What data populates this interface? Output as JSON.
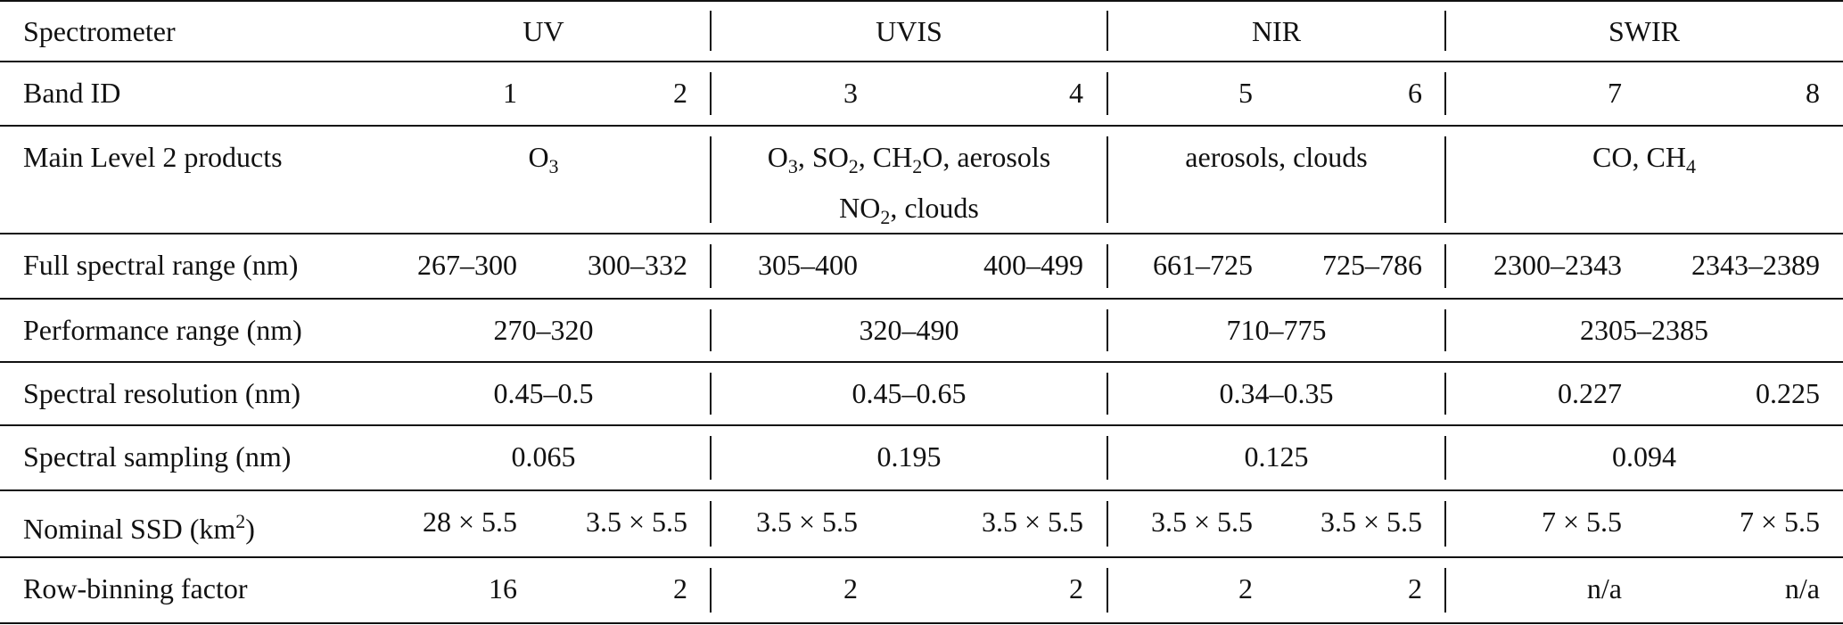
{
  "table": {
    "rows": [
      {
        "label": [
          [
            "Spectrometer"
          ]
        ],
        "groups": [
          {
            "span": [
              [
                "UV"
              ]
            ]
          },
          {
            "span": [
              [
                "UVIS"
              ]
            ]
          },
          {
            "span": [
              [
                "NIR"
              ]
            ]
          },
          {
            "span": [
              [
                "SWIR"
              ]
            ]
          }
        ]
      },
      {
        "label": [
          [
            "Band ID"
          ]
        ],
        "groups": [
          {
            "bands": [
              [
                [
                  "1"
                ]
              ],
              [
                [
                  "2"
                ]
              ]
            ]
          },
          {
            "bands": [
              [
                [
                  "3"
                ]
              ],
              [
                [
                  "4"
                ]
              ]
            ]
          },
          {
            "bands": [
              [
                [
                  "5"
                ]
              ],
              [
                [
                  "6"
                ]
              ]
            ]
          },
          {
            "bands": [
              [
                [
                  "7"
                ]
              ],
              [
                [
                  "8"
                ]
              ]
            ]
          }
        ]
      },
      {
        "label": [
          [
            "Main Level 2 products"
          ]
        ],
        "groups": [
          {
            "span": [
              [
                "O",
                {
                  "sub": "3"
                }
              ]
            ]
          },
          {
            "span": [
              [
                "O",
                {
                  "sub": "3"
                },
                ", SO",
                {
                  "sub": "2"
                },
                ", CH",
                {
                  "sub": "2"
                },
                "O, aerosols"
              ],
              [
                "NO",
                {
                  "sub": "2"
                },
                ", clouds"
              ]
            ]
          },
          {
            "span": [
              [
                "aerosols, clouds"
              ]
            ]
          },
          {
            "span": [
              [
                "CO, CH",
                {
                  "sub": "4"
                }
              ]
            ]
          }
        ]
      },
      {
        "label": [
          [
            "Full spectral range (nm)"
          ]
        ],
        "groups": [
          {
            "bands": [
              [
                [
                  "267–300"
                ]
              ],
              [
                [
                  "300–332"
                ]
              ]
            ]
          },
          {
            "bands": [
              [
                [
                  "305–400"
                ]
              ],
              [
                [
                  "400–499"
                ]
              ]
            ]
          },
          {
            "bands": [
              [
                [
                  "661–725"
                ]
              ],
              [
                [
                  "725–786"
                ]
              ]
            ]
          },
          {
            "bands": [
              [
                [
                  "2300–2343"
                ]
              ],
              [
                [
                  "2343–2389"
                ]
              ]
            ]
          }
        ]
      },
      {
        "label": [
          [
            "Performance range (nm)"
          ]
        ],
        "groups": [
          {
            "span": [
              [
                "270–320"
              ]
            ]
          },
          {
            "span": [
              [
                "320–490"
              ]
            ]
          },
          {
            "span": [
              [
                "710–775"
              ]
            ]
          },
          {
            "span": [
              [
                "2305–2385"
              ]
            ]
          }
        ]
      },
      {
        "label": [
          [
            "Spectral resolution (nm)"
          ]
        ],
        "groups": [
          {
            "span": [
              [
                "0.45–0.5"
              ]
            ]
          },
          {
            "span": [
              [
                "0.45–0.65"
              ]
            ]
          },
          {
            "span": [
              [
                "0.34–0.35"
              ]
            ]
          },
          {
            "bands": [
              [
                [
                  "0.227"
                ]
              ],
              [
                [
                  "0.225"
                ]
              ]
            ]
          }
        ]
      },
      {
        "label": [
          [
            "Spectral sampling (nm)"
          ]
        ],
        "groups": [
          {
            "span": [
              [
                "0.065"
              ]
            ]
          },
          {
            "span": [
              [
                "0.195"
              ]
            ]
          },
          {
            "span": [
              [
                "0.125"
              ]
            ]
          },
          {
            "span": [
              [
                "0.094"
              ]
            ]
          }
        ]
      },
      {
        "label": [
          [
            "Nominal SSD (km",
            {
              "sup": "2"
            },
            ")"
          ]
        ],
        "groups": [
          {
            "bands": [
              [
                [
                  "28 × 5.5"
                ]
              ],
              [
                [
                  "3.5 × 5.5"
                ]
              ]
            ]
          },
          {
            "bands": [
              [
                [
                  "3.5 × 5.5"
                ]
              ],
              [
                [
                  "3.5 × 5.5"
                ]
              ]
            ]
          },
          {
            "bands": [
              [
                [
                  "3.5 × 5.5"
                ]
              ],
              [
                [
                  "3.5 × 5.5"
                ]
              ]
            ]
          },
          {
            "bands": [
              [
                [
                  "7 × 5.5"
                ]
              ],
              [
                [
                  "7 × 5.5"
                ]
              ]
            ]
          }
        ]
      },
      {
        "label": [
          [
            "Row-binning factor"
          ]
        ],
        "groups": [
          {
            "bands": [
              [
                [
                  "16"
                ]
              ],
              [
                [
                  "2"
                ]
              ]
            ]
          },
          {
            "bands": [
              [
                [
                  "2"
                ]
              ],
              [
                [
                  "2"
                ]
              ]
            ]
          },
          {
            "bands": [
              [
                [
                  "2"
                ]
              ],
              [
                [
                  "2"
                ]
              ]
            ]
          },
          {
            "bands": [
              [
                [
                  "n/a"
                ]
              ],
              [
                [
                  "n/a"
                ]
              ]
            ]
          }
        ]
      }
    ]
  }
}
